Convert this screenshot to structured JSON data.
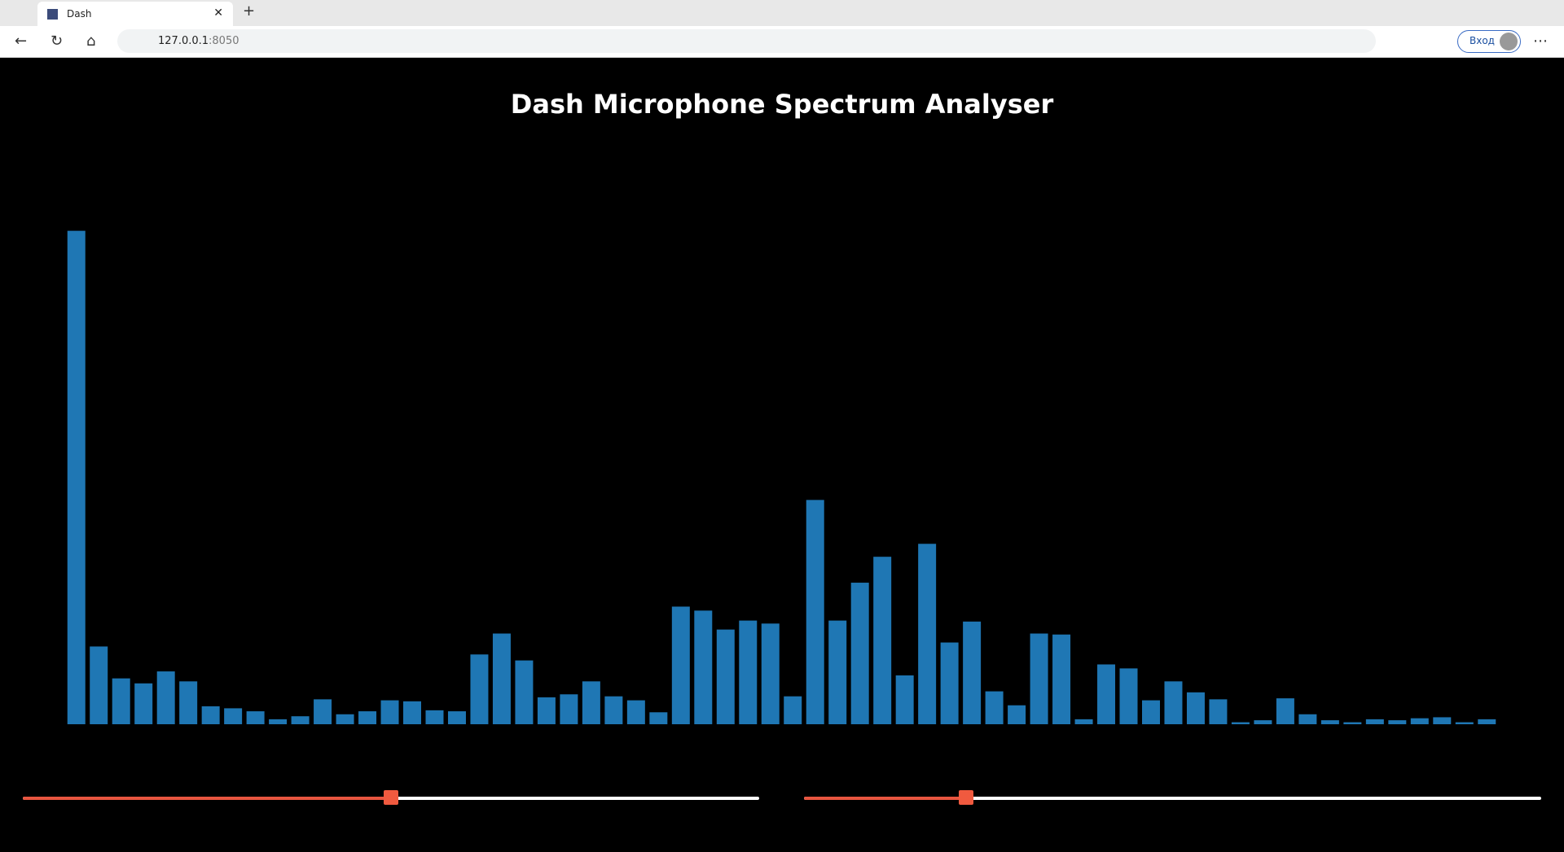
{
  "browser": {
    "tab_title": "Dash",
    "url_host": "127.0.0.1",
    "url_port": ":8050",
    "signin": "Вход"
  },
  "chart_data": {
    "type": "bar",
    "title": "Dash Microphone Spectrum Analyser",
    "color": "#1f77b4",
    "values": [
      495,
      78,
      46,
      41,
      53,
      43,
      18,
      16,
      13,
      5,
      8,
      25,
      10,
      13,
      24,
      23,
      14,
      13,
      70,
      91,
      64,
      27,
      30,
      43,
      28,
      24,
      12,
      118,
      114,
      95,
      104,
      101,
      28,
      225,
      104,
      142,
      168,
      49,
      181,
      82,
      103,
      33,
      19,
      91,
      90,
      5,
      60,
      56,
      24,
      43,
      32,
      25,
      2,
      4,
      26,
      10,
      4,
      2,
      5,
      4,
      6,
      7,
      2,
      5
    ],
    "ylim": [
      0,
      520
    ]
  },
  "sliders": [
    {
      "min": 0,
      "max": 100,
      "value": 50
    },
    {
      "min": 0,
      "max": 100,
      "value": 22
    }
  ]
}
